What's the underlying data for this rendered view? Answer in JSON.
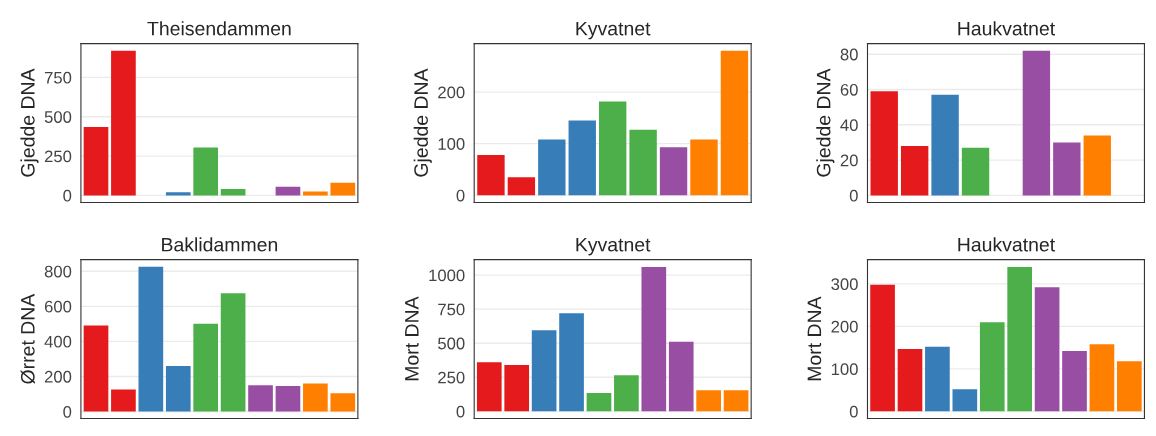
{
  "chart_data": [
    {
      "type": "bar",
      "title": "Theisendammen",
      "ylabel": "Gjedde DNA",
      "categories": [
        null,
        null,
        null,
        null,
        null,
        null,
        null,
        null,
        null,
        null
      ],
      "values": [
        435,
        920,
        0,
        20,
        305,
        40,
        0,
        55,
        25,
        80
      ],
      "colors": [
        "#e41a1c",
        "#e41a1c",
        "#377eb8",
        "#377eb8",
        "#4daf4a",
        "#4daf4a",
        "#984ea3",
        "#984ea3",
        "#ff7f00",
        "#ff7f00"
      ],
      "ylim": [
        -45,
        965
      ],
      "yticks": [
        0,
        250,
        500,
        750
      ],
      "grid": "y",
      "tick_labels": "y"
    },
    {
      "type": "bar",
      "title": "Kyvatnet",
      "ylabel": "Gjedde DNA",
      "categories": [
        null,
        null,
        null,
        null,
        null,
        null,
        null,
        null,
        null
      ],
      "values": [
        78,
        35,
        108,
        145,
        182,
        127,
        93,
        108,
        280
      ],
      "colors": [
        "#e41a1c",
        "#e41a1c",
        "#377eb8",
        "#377eb8",
        "#4daf4a",
        "#4daf4a",
        "#984ea3",
        "#ff7f00",
        "#ff7f00"
      ],
      "ylim": [
        -14,
        294
      ],
      "yticks": [
        0,
        100,
        200
      ],
      "grid": "y",
      "tick_labels": "y"
    },
    {
      "type": "bar",
      "title": "Haukvatnet",
      "ylabel": "Gjedde DNA",
      "categories": [
        null,
        null,
        null,
        null,
        null,
        null,
        null,
        null,
        null
      ],
      "values": [
        59,
        28,
        57,
        27,
        0,
        82,
        30,
        34,
        0
      ],
      "colors": [
        "#e41a1c",
        "#e41a1c",
        "#377eb8",
        "#4daf4a",
        "#4daf4a",
        "#984ea3",
        "#984ea3",
        "#ff7f00",
        "#ff7f00"
      ],
      "ylim": [
        -4,
        86
      ],
      "yticks": [
        0,
        20,
        40,
        60,
        80
      ],
      "grid": "y",
      "tick_labels": "y"
    },
    {
      "type": "bar",
      "title": "Baklidammen",
      "ylabel": "Ørret DNA",
      "categories": [
        null,
        null,
        null,
        null,
        null,
        null,
        null,
        null,
        null,
        null
      ],
      "values": [
        490,
        125,
        825,
        260,
        500,
        675,
        150,
        145,
        160,
        105
      ],
      "colors": [
        "#e41a1c",
        "#e41a1c",
        "#377eb8",
        "#377eb8",
        "#4daf4a",
        "#4daf4a",
        "#984ea3",
        "#984ea3",
        "#ff7f00",
        "#ff7f00"
      ],
      "ylim": [
        -40,
        866
      ],
      "yticks": [
        0,
        200,
        400,
        600,
        800
      ],
      "grid": "y",
      "tick_labels": "y"
    },
    {
      "type": "bar",
      "title": "Kyvatnet",
      "ylabel": "Mort DNA",
      "categories": [
        null,
        null,
        null,
        null,
        null,
        null,
        null,
        null,
        null,
        null
      ],
      "values": [
        360,
        340,
        595,
        720,
        135,
        265,
        1060,
        510,
        155,
        155
      ],
      "colors": [
        "#e41a1c",
        "#e41a1c",
        "#377eb8",
        "#377eb8",
        "#4daf4a",
        "#4daf4a",
        "#984ea3",
        "#984ea3",
        "#ff7f00",
        "#ff7f00"
      ],
      "ylim": [
        -53,
        1113
      ],
      "yticks": [
        0,
        250,
        500,
        750,
        1000
      ],
      "grid": "y",
      "tick_labels": "y"
    },
    {
      "type": "bar",
      "title": "Haukvatnet",
      "ylabel": "Mort DNA",
      "categories": [
        null,
        null,
        null,
        null,
        null,
        null,
        null,
        null,
        null,
        null
      ],
      "values": [
        298,
        147,
        152,
        52,
        210,
        340,
        292,
        142,
        158,
        118
      ],
      "colors": [
        "#e41a1c",
        "#e41a1c",
        "#377eb8",
        "#377eb8",
        "#4daf4a",
        "#4daf4a",
        "#984ea3",
        "#984ea3",
        "#ff7f00",
        "#ff7f00"
      ],
      "ylim": [
        -17,
        357
      ],
      "yticks": [
        0,
        100,
        200,
        300
      ],
      "grid": "y",
      "tick_labels": "y"
    }
  ]
}
